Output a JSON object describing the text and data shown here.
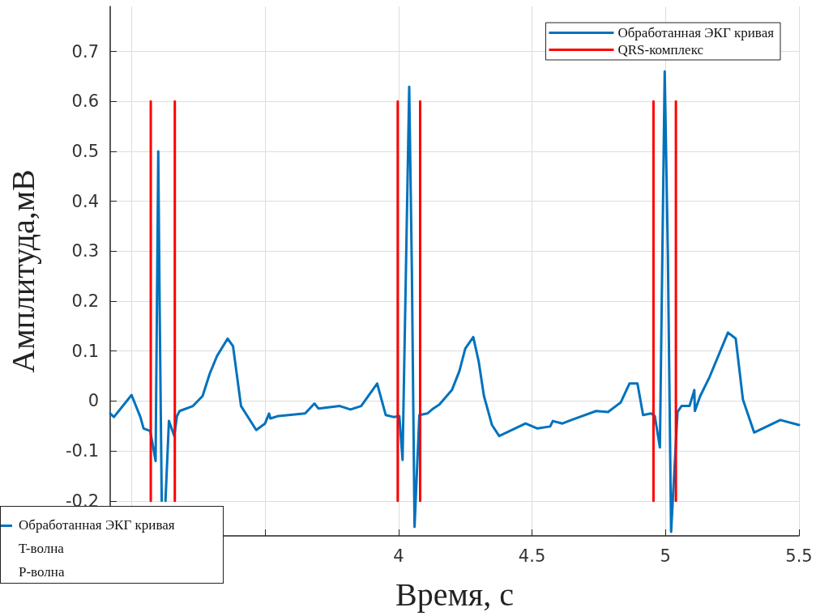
{
  "chart_data": {
    "type": "line",
    "xlabel": "Время, с",
    "ylabel": "Амплитуда,мВ",
    "xlim": [
      2.92,
      5.5
    ],
    "xticks": [
      {
        "value": 3,
        "label": null
      },
      {
        "value": 3.5,
        "label": null
      },
      4,
      4.5,
      5,
      5.5
    ],
    "ylim": [
      -0.27,
      0.79
    ],
    "yticks": [
      -0.2,
      -0.1,
      0,
      0.1,
      0.2,
      0.3,
      0.4,
      0.5,
      0.6,
      0.7
    ],
    "grid": true,
    "legend": "top right",
    "marker": "none",
    "line_style": "solid",
    "annotations": [
      "Обработанная ЭКГ кривая",
      "T-волна",
      "P-волна"
    ],
    "series": [
      {
        "name": "Обработанная ЭКГ кривая",
        "color": "#0072bd",
        "x": [
          2.92,
          2.934,
          3.0,
          3.033,
          3.045,
          3.07,
          3.09,
          3.1,
          3.105,
          3.113,
          3.12,
          3.127,
          3.14,
          3.16,
          3.17,
          3.18,
          3.23,
          3.266,
          3.293,
          3.32,
          3.36,
          3.38,
          3.41,
          3.467,
          3.5,
          3.515,
          3.52,
          3.55,
          3.65,
          3.685,
          3.7,
          3.78,
          3.82,
          3.86,
          3.92,
          3.952,
          3.982,
          4.003,
          4.015,
          4.04,
          4.05,
          4.06,
          4.078,
          4.108,
          4.13,
          4.153,
          4.2,
          4.228,
          4.25,
          4.28,
          4.3,
          4.32,
          4.35,
          4.377,
          4.476,
          4.52,
          4.568,
          4.578,
          4.614,
          4.647,
          4.74,
          4.785,
          4.832,
          4.865,
          4.895,
          4.916,
          4.946,
          4.96,
          4.979,
          4.997,
          5.009,
          5.021,
          5.045,
          5.06,
          5.09,
          5.108,
          5.11,
          5.13,
          5.165,
          5.234,
          5.263,
          5.29,
          5.332,
          5.43,
          5.5
        ],
        "values": [
          -0.025,
          -0.032,
          0.012,
          -0.032,
          -0.055,
          -0.06,
          -0.12,
          0.5,
          0.2,
          -0.2,
          null,
          -0.2,
          -0.04,
          -0.07,
          -0.03,
          -0.02,
          -0.01,
          0.01,
          0.055,
          0.09,
          0.125,
          0.11,
          -0.01,
          -0.058,
          -0.045,
          -0.025,
          -0.035,
          -0.03,
          -0.025,
          -0.005,
          -0.015,
          -0.01,
          -0.017,
          -0.01,
          0.035,
          -0.028,
          -0.032,
          -0.03,
          -0.118,
          0.629,
          0.26,
          -0.252,
          -0.028,
          -0.025,
          -0.015,
          -0.007,
          0.022,
          0.06,
          0.105,
          0.128,
          0.08,
          0.01,
          -0.048,
          -0.07,
          -0.045,
          -0.055,
          -0.051,
          -0.04,
          -0.045,
          -0.038,
          -0.02,
          -0.022,
          -0.003,
          0.035,
          0.035,
          -0.028,
          -0.025,
          -0.03,
          -0.093,
          0.66,
          0.29,
          -0.262,
          -0.022,
          -0.01,
          -0.01,
          0.022,
          -0.02,
          0.01,
          0.048,
          0.137,
          0.125,
          0.003,
          -0.063,
          -0.038,
          -0.048
        ]
      },
      {
        "name": "QRS-комплекс",
        "color": "#ff0000",
        "x": [
          3.072,
          3.072,
          null,
          3.162,
          3.162,
          null,
          3.997,
          3.997,
          null,
          4.081,
          4.081,
          null,
          4.955,
          4.955,
          null,
          5.039,
          5.039
        ],
        "values": [
          -0.2,
          0.6,
          null,
          -0.2,
          0.6,
          null,
          -0.2,
          0.6,
          null,
          -0.2,
          0.6,
          null,
          -0.2,
          0.6,
          null,
          -0.2,
          0.6
        ]
      }
    ]
  }
}
